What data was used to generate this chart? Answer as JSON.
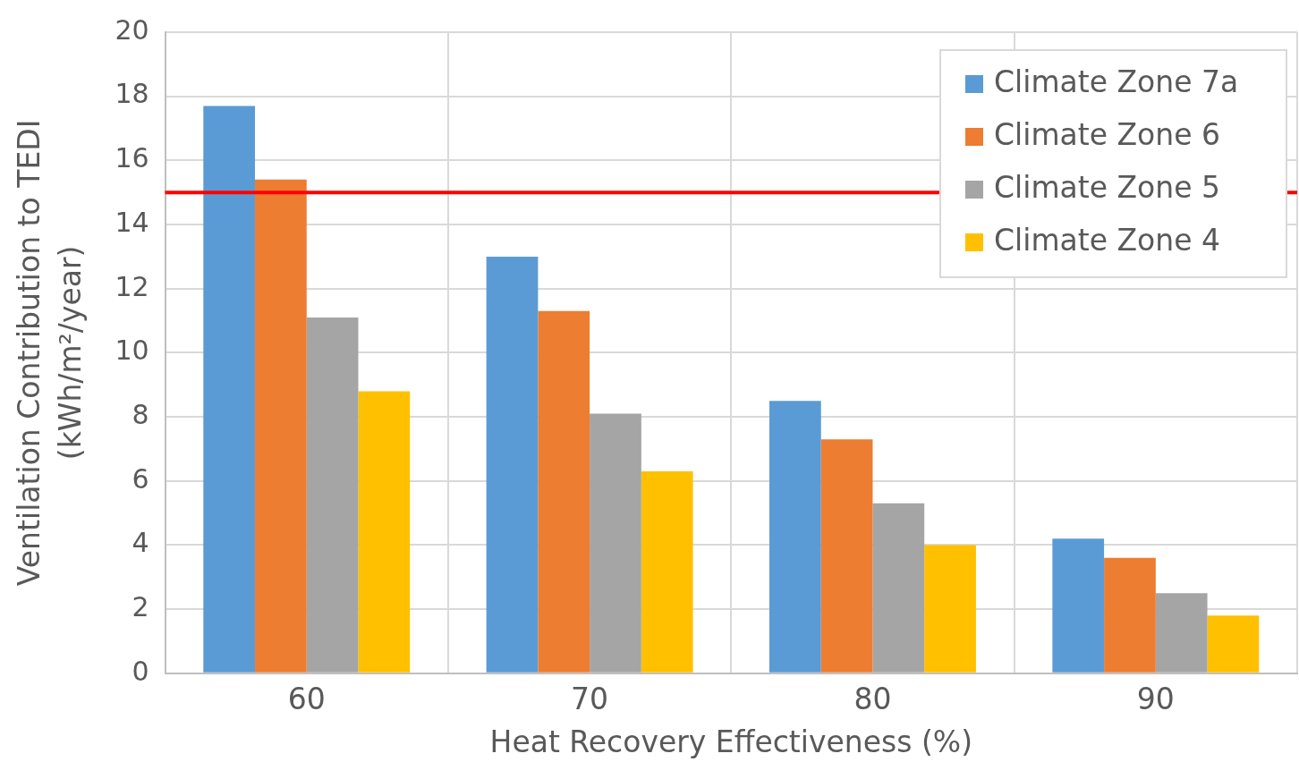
{
  "chart_data": {
    "type": "bar",
    "xlabel": "Heat Recovery Effectiveness (%)",
    "ylabel": "Ventilation Contribution to TEDI\n(kWh/m²/year)",
    "categories": [
      "60",
      "70",
      "80",
      "90"
    ],
    "series": [
      {
        "name": "Climate Zone 7a",
        "color": "#5b9bd5",
        "values": [
          17.7,
          13.0,
          8.5,
          4.2
        ]
      },
      {
        "name": "Climate Zone 6",
        "color": "#ed7d31",
        "values": [
          15.4,
          11.3,
          7.3,
          3.6
        ]
      },
      {
        "name": "Climate Zone 5",
        "color": "#a5a5a5",
        "values": [
          11.1,
          8.1,
          5.3,
          2.5
        ]
      },
      {
        "name": "Climate Zone 4",
        "color": "#ffc000",
        "values": [
          8.8,
          6.3,
          4.0,
          1.8
        ]
      }
    ],
    "ylim": [
      0,
      20
    ],
    "yticks": [
      0,
      2,
      4,
      6,
      8,
      10,
      12,
      14,
      16,
      18,
      20
    ],
    "grid": true,
    "legend": "top right",
    "ref_lines": [
      {
        "axis": "y",
        "value": 15,
        "color": "#ff0000",
        "line_style": "solid"
      }
    ]
  }
}
